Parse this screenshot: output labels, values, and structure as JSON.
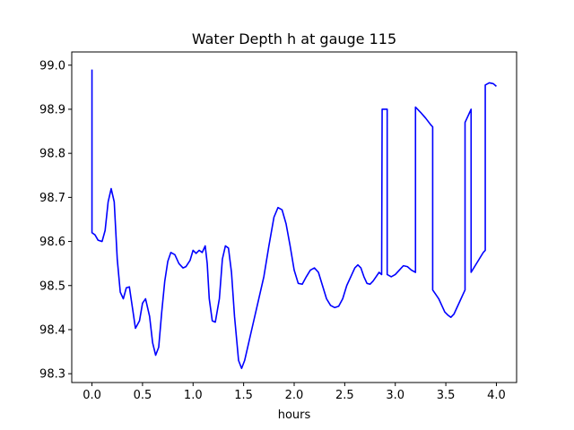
{
  "chart_data": {
    "type": "line",
    "title": "Water Depth h at gauge 115",
    "xlabel": "hours",
    "ylabel": "",
    "xlim": [
      -0.2,
      4.2
    ],
    "ylim": [
      98.28,
      99.03
    ],
    "xticks": [
      0.0,
      0.5,
      1.0,
      1.5,
      2.0,
      2.5,
      3.0,
      3.5,
      4.0
    ],
    "xtick_labels": [
      "0.0",
      "0.5",
      "1.0",
      "1.5",
      "2.0",
      "2.5",
      "3.0",
      "3.5",
      "4.0"
    ],
    "yticks": [
      98.3,
      98.4,
      98.5,
      98.6,
      98.7,
      98.8,
      98.9,
      99.0
    ],
    "ytick_labels": [
      "98.3",
      "98.4",
      "98.5",
      "98.6",
      "98.7",
      "98.8",
      "98.9",
      "99.0"
    ],
    "grid": false,
    "color": "#0000ff",
    "series": [
      {
        "x": [
          0.0,
          0.0,
          0.03,
          0.06,
          0.1,
          0.13,
          0.16,
          0.19,
          0.22,
          0.25,
          0.28,
          0.31,
          0.34,
          0.37,
          0.4,
          0.43,
          0.47,
          0.5,
          0.53,
          0.57,
          0.6,
          0.63,
          0.66,
          0.69,
          0.72,
          0.75,
          0.78,
          0.82,
          0.86,
          0.9,
          0.93,
          0.97,
          1.0,
          1.03,
          1.06,
          1.09,
          1.12,
          1.14,
          1.16,
          1.19,
          1.22,
          1.26,
          1.29,
          1.32,
          1.35,
          1.38,
          1.41,
          1.45,
          1.48,
          1.51,
          1.54,
          1.57,
          1.6,
          1.65,
          1.7,
          1.75,
          1.8,
          1.84,
          1.88,
          1.92,
          1.96,
          2.0,
          2.04,
          2.08,
          2.12,
          2.16,
          2.2,
          2.24,
          2.28,
          2.32,
          2.36,
          2.4,
          2.44,
          2.48,
          2.52,
          2.56,
          2.6,
          2.63,
          2.66,
          2.69,
          2.72,
          2.75,
          2.78,
          2.81,
          2.84,
          2.865,
          2.87,
          2.92,
          2.92,
          2.96,
          3.0,
          3.04,
          3.08,
          3.12,
          3.16,
          3.2,
          3.2,
          3.25,
          3.3,
          3.35,
          3.37,
          3.37,
          3.4,
          3.43,
          3.46,
          3.49,
          3.52,
          3.55,
          3.58,
          3.61,
          3.64,
          3.67,
          3.69,
          3.69,
          3.73,
          3.75,
          3.75,
          3.79,
          3.83,
          3.87,
          3.89,
          3.89,
          3.93,
          3.97,
          4.0
        ],
        "y": [
          98.99,
          98.62,
          98.615,
          98.603,
          98.6,
          98.625,
          98.69,
          98.72,
          98.69,
          98.56,
          98.485,
          98.47,
          98.495,
          98.497,
          98.45,
          98.403,
          98.42,
          98.46,
          98.47,
          98.43,
          98.37,
          98.342,
          98.36,
          98.44,
          98.51,
          98.555,
          98.575,
          98.57,
          98.55,
          98.54,
          98.543,
          98.557,
          98.58,
          98.573,
          98.58,
          98.575,
          98.59,
          98.55,
          98.47,
          98.42,
          98.417,
          98.47,
          98.56,
          98.59,
          98.585,
          98.53,
          98.43,
          98.33,
          98.312,
          98.33,
          98.36,
          98.39,
          98.42,
          98.47,
          98.52,
          98.59,
          98.655,
          98.677,
          98.672,
          98.64,
          98.59,
          98.535,
          98.505,
          98.503,
          98.52,
          98.535,
          98.54,
          98.53,
          98.5,
          98.47,
          98.455,
          98.45,
          98.453,
          98.47,
          98.5,
          98.52,
          98.54,
          98.547,
          98.54,
          98.52,
          98.505,
          98.503,
          98.51,
          98.52,
          98.53,
          98.525,
          98.9,
          98.9,
          98.525,
          98.52,
          98.525,
          98.535,
          98.545,
          98.543,
          98.535,
          98.53,
          98.905,
          98.893,
          98.88,
          98.865,
          98.86,
          98.49,
          98.48,
          98.47,
          98.455,
          98.44,
          98.433,
          98.428,
          98.435,
          98.45,
          98.465,
          98.48,
          98.49,
          98.87,
          98.89,
          98.9,
          98.53,
          98.545,
          98.56,
          98.575,
          98.58,
          98.955,
          98.96,
          98.958,
          98.952
        ]
      }
    ]
  }
}
